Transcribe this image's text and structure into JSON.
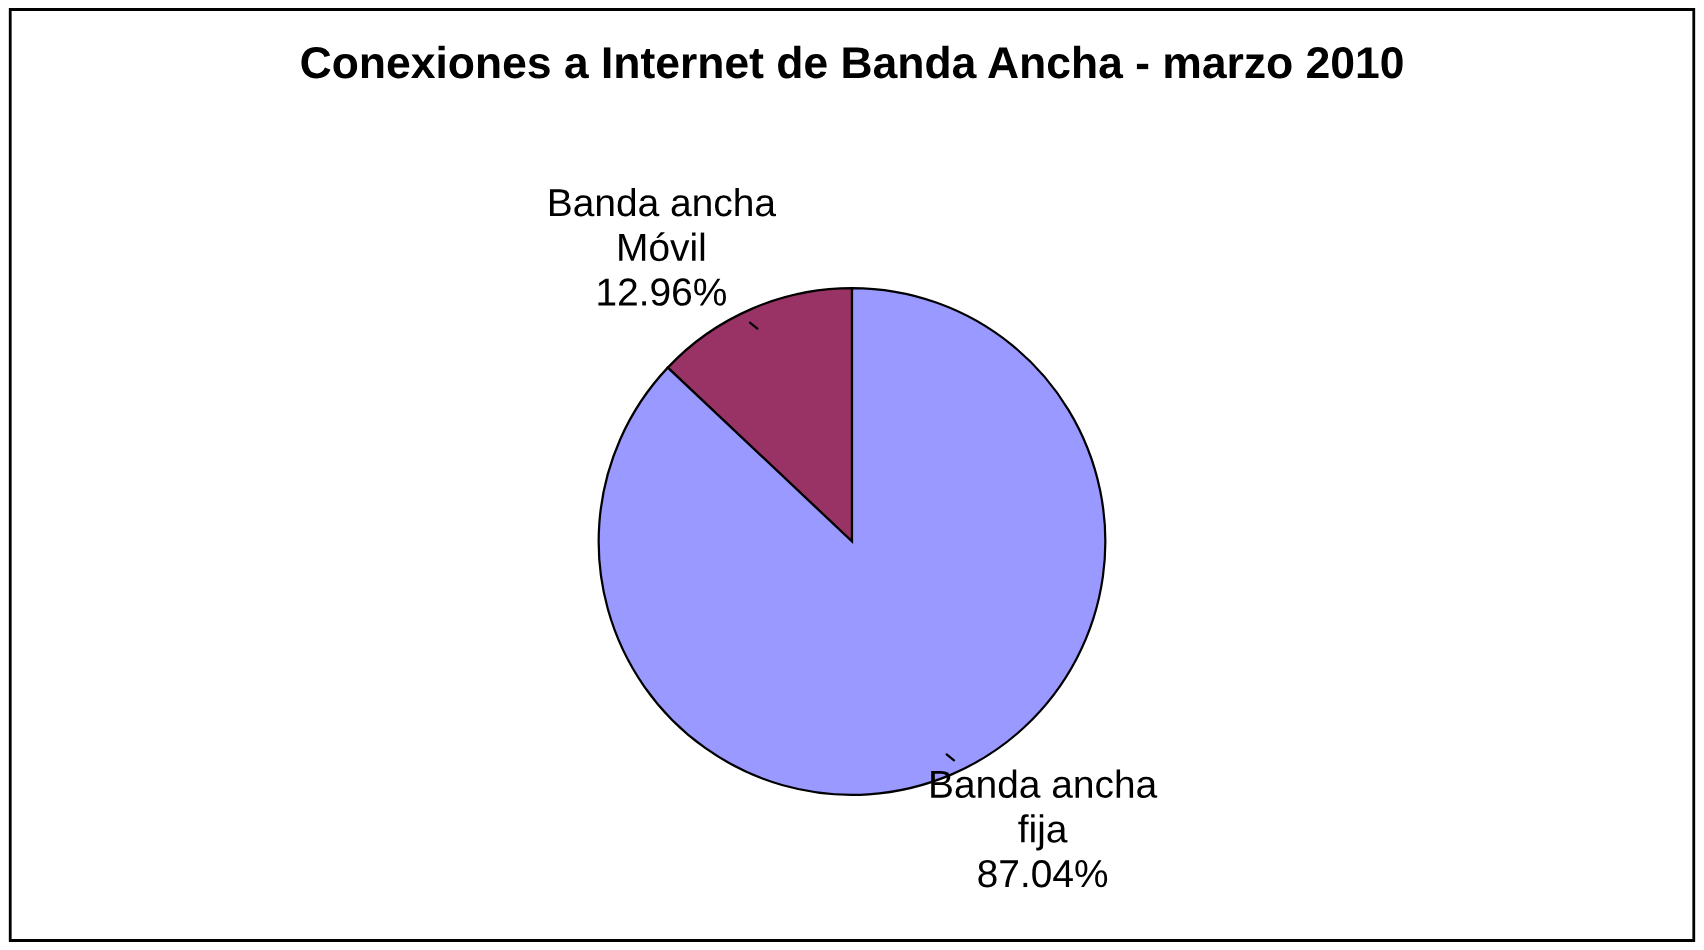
{
  "chart_data": {
    "type": "pie",
    "title": "Conexiones a Internet de Banda Ancha - marzo 2010",
    "categories": [
      "Banda ancha\nMóvil",
      "Banda ancha\nfija"
    ],
    "values": [
      12.96,
      87.04
    ],
    "colors": [
      "#993366",
      "#9999ff"
    ],
    "value_labels": [
      "12.96%",
      "87.04%"
    ],
    "legend": false
  }
}
